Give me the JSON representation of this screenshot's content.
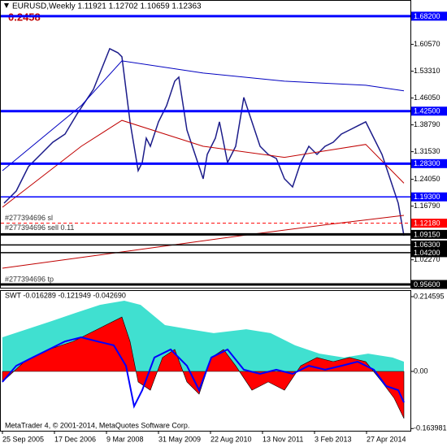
{
  "chart_data": [
    {
      "type": "line",
      "title": "EURUSD,Weekly  1.11921 1.12702 1.10659 1.12363",
      "subtitle": "0.2458",
      "xlim": [
        -3,
        502
      ],
      "ylim": [
        0.9472,
        1.7258
      ],
      "yticks": [
        {
          "value": 1.6057,
          "label": "1.60570"
        },
        {
          "value": 1.5331,
          "label": "1.53310"
        },
        {
          "value": 1.4605,
          "label": "1.46050"
        },
        {
          "value": 1.3879,
          "label": "1.38790"
        },
        {
          "value": 1.3153,
          "label": "1.31530"
        },
        {
          "value": 1.2405,
          "label": "1.24050"
        },
        {
          "value": 1.1679,
          "label": "1.16790"
        },
        {
          "value": 1.0227,
          "label": "1.02270"
        }
      ],
      "series": [
        {
          "color": "#1c1c8a",
          "width": 1.5,
          "x": [
            2,
            17,
            32,
            47,
            62,
            77,
            92,
            102,
            112,
            122,
            132,
            142,
            147,
            152,
            157,
            162,
            167,
            172,
            177,
            182,
            192,
            202,
            212,
            217,
            227,
            237,
            247,
            252,
            262,
            267,
            277,
            287,
            297,
            307,
            317,
            327,
            337,
            347,
            357,
            367,
            377,
            387,
            397,
            407,
            417,
            427,
            437,
            447,
            457,
            467,
            477,
            487,
            494
          ],
          "values": [
            1.176,
            1.209,
            1.275,
            1.308,
            1.341,
            1.363,
            1.418,
            1.451,
            1.484,
            1.539,
            1.594,
            1.583,
            1.572,
            1.484,
            1.396,
            1.33,
            1.264,
            1.286,
            1.352,
            1.33,
            1.396,
            1.44,
            1.506,
            1.517,
            1.374,
            1.308,
            1.242,
            1.308,
            1.352,
            1.396,
            1.286,
            1.33,
            1.462,
            1.396,
            1.33,
            1.308,
            1.297,
            1.242,
            1.22,
            1.286,
            1.33,
            1.308,
            1.33,
            1.341,
            1.363,
            1.374,
            1.385,
            1.396,
            1.352,
            1.308,
            1.242,
            1.176,
            1.088
          ]
        },
        {
          "color": "#c00000",
          "width": 1,
          "x": [
            0,
            100,
            200,
            300,
            400,
            494
          ],
          "values": [
            1.0,
            1.03,
            1.06,
            1.09,
            1.118,
            1.143
          ]
        },
        {
          "color": "#0000c0",
          "width": 1,
          "x": [
            0,
            97,
            147,
            247,
            347,
            447,
            494
          ],
          "values": [
            1.264,
            1.44,
            1.561,
            1.528,
            1.506,
            1.495,
            1.48
          ]
        },
        {
          "color": "#c00000",
          "width": 1,
          "x": [
            0,
            97,
            147,
            247,
            347,
            447,
            494
          ],
          "values": [
            1.165,
            1.33,
            1.4,
            1.33,
            1.3,
            1.335,
            1.23
          ]
        }
      ],
      "levels": [
        {
          "value": 1.682,
          "label": "1.68200",
          "color": "#0000ff",
          "thick": true
        },
        {
          "value": 1.425,
          "label": "1.42500",
          "color": "#0000ff",
          "thick": true
        },
        {
          "value": 1.283,
          "label": "1.28300",
          "color": "#0000ff",
          "thick": true
        },
        {
          "value": 1.193,
          "label": "1.19300",
          "color": "#0000ff",
          "thick": false
        },
        {
          "value": 1.1218,
          "label": "1.12180",
          "color": "#ff0000",
          "thick": false,
          "dashed": true
        },
        {
          "value": 1.0915,
          "label": "1.09150",
          "color": "#000000",
          "thick": true
        },
        {
          "value": 1.063,
          "label": "1.06300",
          "color": "#000000",
          "thick": false
        },
        {
          "value": 1.042,
          "label": "1.04200",
          "color": "#000000",
          "thick": false
        },
        {
          "value": 0.956,
          "label": "0.95600",
          "color": "#000000",
          "thick": true
        }
      ],
      "annotations": [
        {
          "text": "#277394696 sl",
          "value": 1.1218,
          "anchor": "above"
        },
        {
          "text": "#277394696 sell 0.11",
          "value": 1.1218,
          "anchor": "below"
        },
        {
          "text": "#277394696 tp",
          "value": 0.956,
          "anchor": "above"
        }
      ]
    },
    {
      "type": "area",
      "title": "SWT -0.016289 -0.121949 -0.042690",
      "xlim": [
        -3,
        502
      ],
      "ylim": [
        -0.1703,
        0.2333
      ],
      "yticks": [
        0.214595,
        {
          "value": 0,
          "label": "0.00"
        },
        -0.163981
      ],
      "xticks": [
        {
          "value": 0,
          "label": "25 Sep 2005"
        },
        {
          "value": 64,
          "label": "17 Dec 2006"
        },
        {
          "value": 128,
          "label": "9 Mar 2008"
        },
        {
          "value": 192,
          "label": "31 May 2009"
        },
        {
          "value": 256,
          "label": "22 Aug 2010"
        },
        {
          "value": 320,
          "label": "13 Nov 2011"
        },
        {
          "value": 384,
          "label": "3 Feb 2013"
        },
        {
          "value": 448,
          "label": "27 Apr 2014"
        }
      ],
      "series": [
        {
          "color": "#40e0d0",
          "fill": true,
          "x": [
            0,
            30,
            60,
            90,
            120,
            150,
            170,
            200,
            230,
            260,
            300,
            330,
            360,
            390,
            420,
            450,
            480,
            494
          ],
          "values": [
            0.098,
            0.121,
            0.144,
            0.168,
            0.191,
            0.203,
            0.191,
            0.133,
            0.121,
            0.11,
            0.121,
            0.11,
            0.075,
            0.051,
            0.04,
            0.051,
            0.04,
            0.028
          ]
        },
        {
          "color": "#ff0000",
          "fill": true,
          "x": [
            0,
            27,
            57,
            87,
            117,
            147,
            157,
            167,
            182,
            197,
            212,
            227,
            242,
            257,
            272,
            287,
            307,
            327,
            347,
            367,
            387,
            407,
            427,
            447,
            467,
            482,
            494
          ],
          "values": [
            -0.03,
            0.028,
            0.063,
            0.086,
            0.121,
            0.156,
            0.086,
            -0.03,
            -0.054,
            0.04,
            0.063,
            -0.03,
            -0.065,
            0.04,
            0.063,
            0.016,
            -0.054,
            -0.03,
            -0.054,
            0.016,
            0.04,
            0.028,
            0.04,
            0.028,
            -0.03,
            -0.077,
            -0.135
          ]
        },
        {
          "color": "#0000ff",
          "fill": false,
          "x": [
            0,
            17,
            37,
            57,
            77,
            97,
            117,
            137,
            152,
            162,
            172,
            187,
            207,
            227,
            242,
            257,
            277,
            297,
            317,
            337,
            357,
            377,
            397,
            417,
            437,
            457,
            472,
            487,
            494
          ],
          "values": [
            -0.03,
            0.016,
            0.04,
            0.063,
            0.086,
            0.098,
            0.086,
            0.075,
            0.016,
            -0.1,
            -0.054,
            0.04,
            0.063,
            0.016,
            -0.054,
            0.04,
            0.063,
            0.005,
            -0.007,
            0.005,
            -0.007,
            0.016,
            0.005,
            0.016,
            0.028,
            0.005,
            -0.042,
            -0.054,
            -0.089
          ]
        }
      ],
      "footer": "MetaTrader 4, © 2001-2014, MetaQuotes Software Corp."
    }
  ]
}
